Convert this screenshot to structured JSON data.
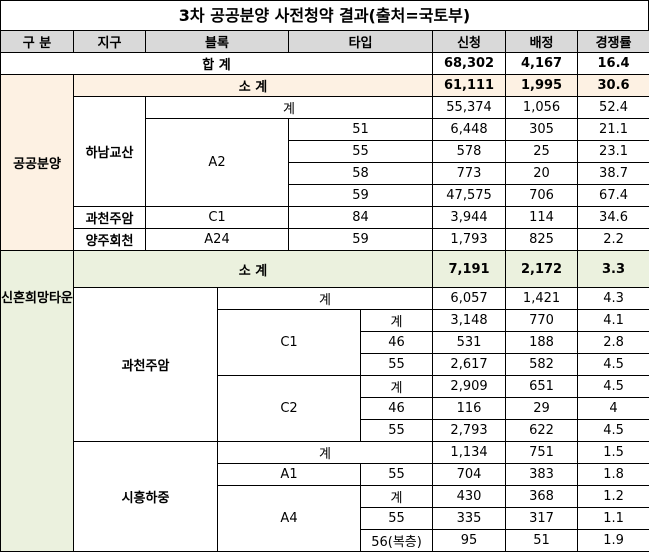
{
  "title": "3차 공공분양 사전청약 결과(출처=국토부)",
  "table": {
    "header": [
      "구 분",
      "지구",
      "블록",
      "타입",
      "신청",
      "배정",
      "경쟁률"
    ],
    "rows": [
      [
        "합 계",
        "68,302",
        "4,167",
        "16.4"
      ],
      [
        "공공분양",
        "소 계",
        "61,111",
        "1,995",
        "30.6"
      ],
      [
        "하남교산",
        "계",
        "55,374",
        "1,056",
        "52.4"
      ],
      [
        "A2",
        "51",
        "6,448",
        "305",
        "21.1"
      ],
      [
        "55",
        "578",
        "25",
        "23.1"
      ],
      [
        "58",
        "773",
        "20",
        "38.7"
      ],
      [
        "59",
        "47,575",
        "706",
        "67.4"
      ],
      [
        "과천주암",
        "C1",
        "84",
        "3,944",
        "114",
        "34.6"
      ],
      [
        "양주회천",
        "A24",
        "59",
        "1,793",
        "825",
        "2.2"
      ],
      [
        "신혼희망타운",
        "소 계",
        "7,191",
        "2,172",
        "3.3"
      ],
      [
        "과천주암",
        "계",
        "6,057",
        "1,421",
        "4.3"
      ],
      [
        "C1",
        "계",
        "3,148",
        "770",
        "4.1"
      ],
      [
        "46",
        "531",
        "188",
        "2.8"
      ],
      [
        "55",
        "2,617",
        "582",
        "4.5"
      ],
      [
        "C2",
        "계",
        "2,909",
        "651",
        "4.5"
      ],
      [
        "46",
        "116",
        "29",
        "4"
      ],
      [
        "55",
        "2,793",
        "622",
        "4.5"
      ],
      [
        "시흥하중",
        "계",
        "1,134",
        "751",
        "1.5"
      ],
      [
        "A1",
        "55",
        "704",
        "383",
        "1.8"
      ],
      [
        "A4",
        "계",
        "430",
        "368",
        "1.2"
      ],
      [
        "55",
        "335",
        "317",
        "1.1"
      ],
      [
        "56(복층)",
        "95",
        "51",
        "1.9"
      ]
    ]
  }
}
